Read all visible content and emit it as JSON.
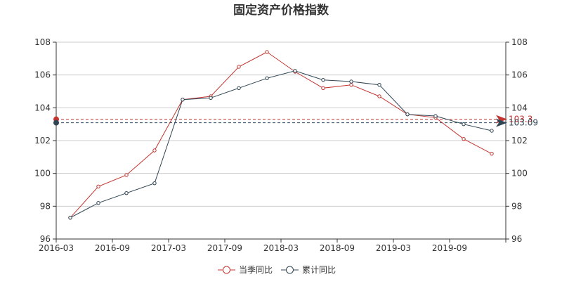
{
  "chart_data": {
    "type": "line",
    "title": "固定资产价格指数",
    "x": [
      "2016-03",
      "2016-06",
      "2016-09",
      "2016-12",
      "2017-03",
      "2017-06",
      "2017-09",
      "2017-12",
      "2018-03",
      "2018-06",
      "2018-09",
      "2018-12",
      "2019-03",
      "2019-06",
      "2019-09",
      "2019-12"
    ],
    "x_tick_labels": [
      "2016-03",
      "2016-09",
      "2017-03",
      "2017-09",
      "2018-03",
      "2018-09",
      "2019-03",
      "2019-09"
    ],
    "y_ticks": [
      96,
      98,
      100,
      102,
      104,
      106,
      108
    ],
    "ylim": [
      96,
      108
    ],
    "grid": true,
    "legend_position": "bottom-center",
    "series": [
      {
        "name": "当季同比",
        "color": "#c23531",
        "values": [
          97.3,
          99.2,
          99.9,
          101.4,
          104.5,
          104.7,
          106.5,
          107.4,
          106.2,
          105.2,
          105.4,
          104.7,
          103.6,
          103.4,
          102.1,
          101.2
        ],
        "markline": 103.3,
        "markline_label": "103.3"
      },
      {
        "name": "累计同比",
        "color": "#2f4554",
        "values": [
          97.3,
          98.2,
          98.8,
          99.4,
          104.5,
          104.6,
          105.2,
          105.8,
          106.25,
          105.7,
          105.6,
          105.4,
          103.6,
          103.5,
          103.0,
          102.6
        ],
        "markline": 103.09,
        "markline_label": "103.09"
      }
    ]
  }
}
